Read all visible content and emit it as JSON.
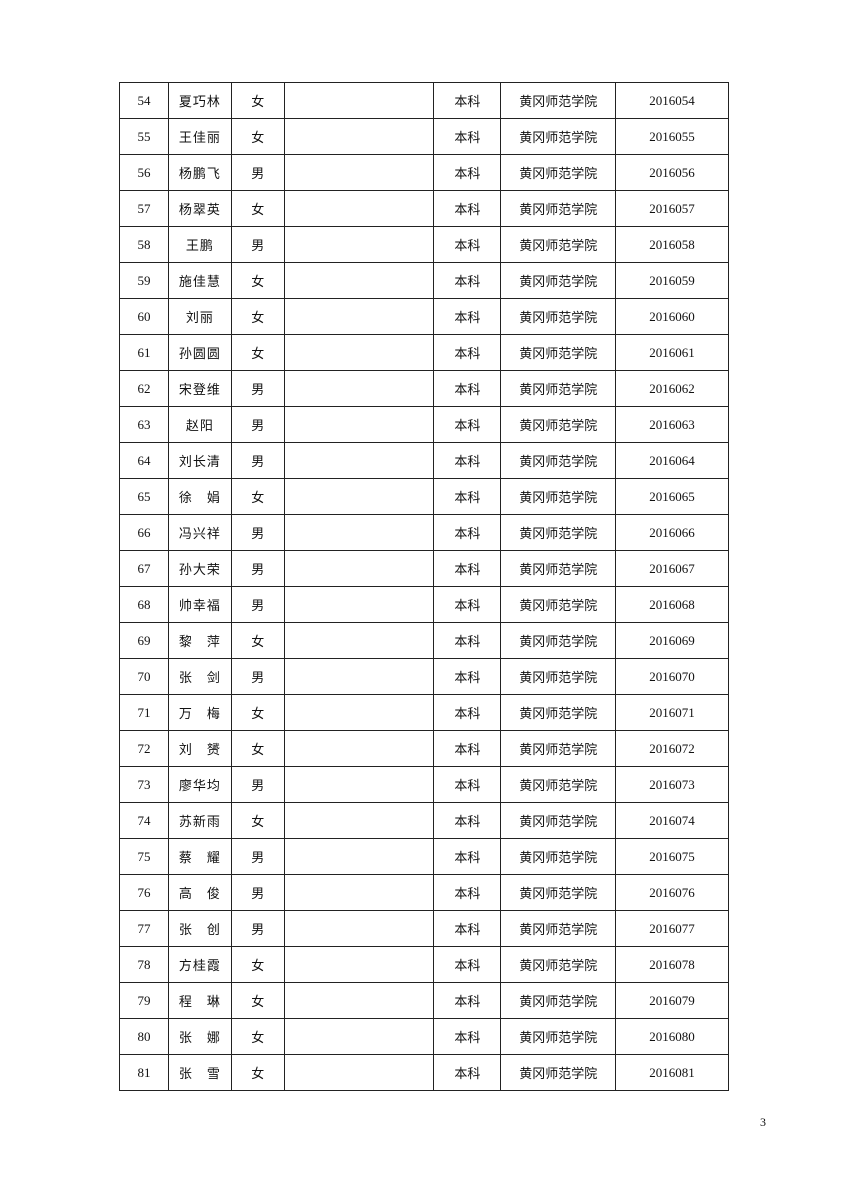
{
  "table": {
    "rows": [
      [
        "54",
        "夏巧林",
        "女",
        "",
        "本科",
        "黄冈师范学院",
        "2016054"
      ],
      [
        "55",
        "王佳丽",
        "女",
        "",
        "本科",
        "黄冈师范学院",
        "2016055"
      ],
      [
        "56",
        "杨鹏飞",
        "男",
        "",
        "本科",
        "黄冈师范学院",
        "2016056"
      ],
      [
        "57",
        "杨翠英",
        "女",
        "",
        "本科",
        "黄冈师范学院",
        "2016057"
      ],
      [
        "58",
        "王鹏",
        "男",
        "",
        "本科",
        "黄冈师范学院",
        "2016058"
      ],
      [
        "59",
        "施佳慧",
        "女",
        "",
        "本科",
        "黄冈师范学院",
        "2016059"
      ],
      [
        "60",
        "刘丽",
        "女",
        "",
        "本科",
        "黄冈师范学院",
        "2016060"
      ],
      [
        "61",
        "孙圆圆",
        "女",
        "",
        "本科",
        "黄冈师范学院",
        "2016061"
      ],
      [
        "62",
        "宋登维",
        "男",
        "",
        "本科",
        "黄冈师范学院",
        "2016062"
      ],
      [
        "63",
        "赵阳",
        "男",
        "",
        "本科",
        "黄冈师范学院",
        "2016063"
      ],
      [
        "64",
        "刘长清",
        "男",
        "",
        "本科",
        "黄冈师范学院",
        "2016064"
      ],
      [
        "65",
        "徐　娟",
        "女",
        "",
        "本科",
        "黄冈师范学院",
        "2016065"
      ],
      [
        "66",
        "冯兴祥",
        "男",
        "",
        "本科",
        "黄冈师范学院",
        "2016066"
      ],
      [
        "67",
        "孙大荣",
        "男",
        "",
        "本科",
        "黄冈师范学院",
        "2016067"
      ],
      [
        "68",
        "帅幸福",
        "男",
        "",
        "本科",
        "黄冈师范学院",
        "2016068"
      ],
      [
        "69",
        "黎　萍",
        "女",
        "",
        "本科",
        "黄冈师范学院",
        "2016069"
      ],
      [
        "70",
        "张　剑",
        "男",
        "",
        "本科",
        "黄冈师范学院",
        "2016070"
      ],
      [
        "71",
        "万　梅",
        "女",
        "",
        "本科",
        "黄冈师范学院",
        "2016071"
      ],
      [
        "72",
        "刘　赟",
        "女",
        "",
        "本科",
        "黄冈师范学院",
        "2016072"
      ],
      [
        "73",
        "廖华均",
        "男",
        "",
        "本科",
        "黄冈师范学院",
        "2016073"
      ],
      [
        "74",
        "苏新雨",
        "女",
        "",
        "本科",
        "黄冈师范学院",
        "2016074"
      ],
      [
        "75",
        "蔡　耀",
        "男",
        "",
        "本科",
        "黄冈师范学院",
        "2016075"
      ],
      [
        "76",
        "高　俊",
        "男",
        "",
        "本科",
        "黄冈师范学院",
        "2016076"
      ],
      [
        "77",
        "张　创",
        "男",
        "",
        "本科",
        "黄冈师范学院",
        "2016077"
      ],
      [
        "78",
        "方桂霞",
        "女",
        "",
        "本科",
        "黄冈师范学院",
        "2016078"
      ],
      [
        "79",
        "程　琳",
        "女",
        "",
        "本科",
        "黄冈师范学院",
        "2016079"
      ],
      [
        "80",
        "张　娜",
        "女",
        "",
        "本科",
        "黄冈师范学院",
        "2016080"
      ],
      [
        "81",
        "张　雪",
        "女",
        "",
        "本科",
        "黄冈师范学院",
        "2016081"
      ]
    ]
  },
  "footer": {
    "page_number": "3"
  }
}
